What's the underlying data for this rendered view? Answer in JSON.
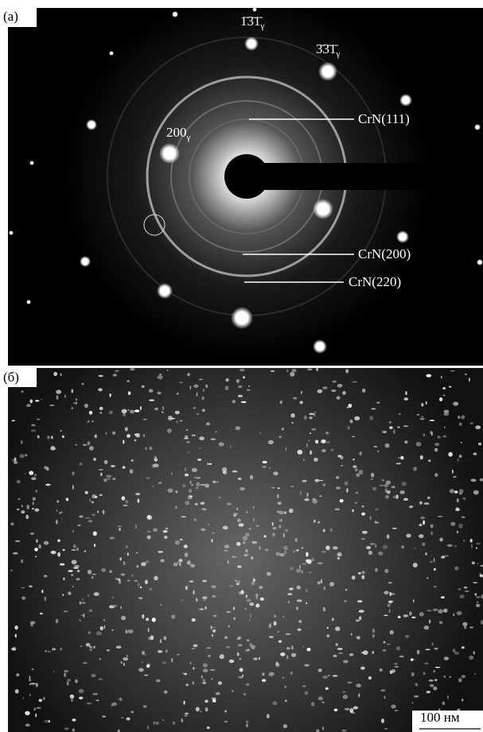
{
  "panel_a": {
    "label": "(а)",
    "reflections": [
      {
        "text": "1̄3̄1̄",
        "sub": "γ"
      },
      {
        "text": "3̄3̄1̄",
        "sub": "γ"
      },
      {
        "text": "200",
        "sub": "γ"
      }
    ],
    "annotations": [
      "CrN(111)",
      "CrN(200)",
      "CrN(220)"
    ]
  },
  "panel_b": {
    "label": "(б)",
    "scale_bar": "100 нм"
  }
}
